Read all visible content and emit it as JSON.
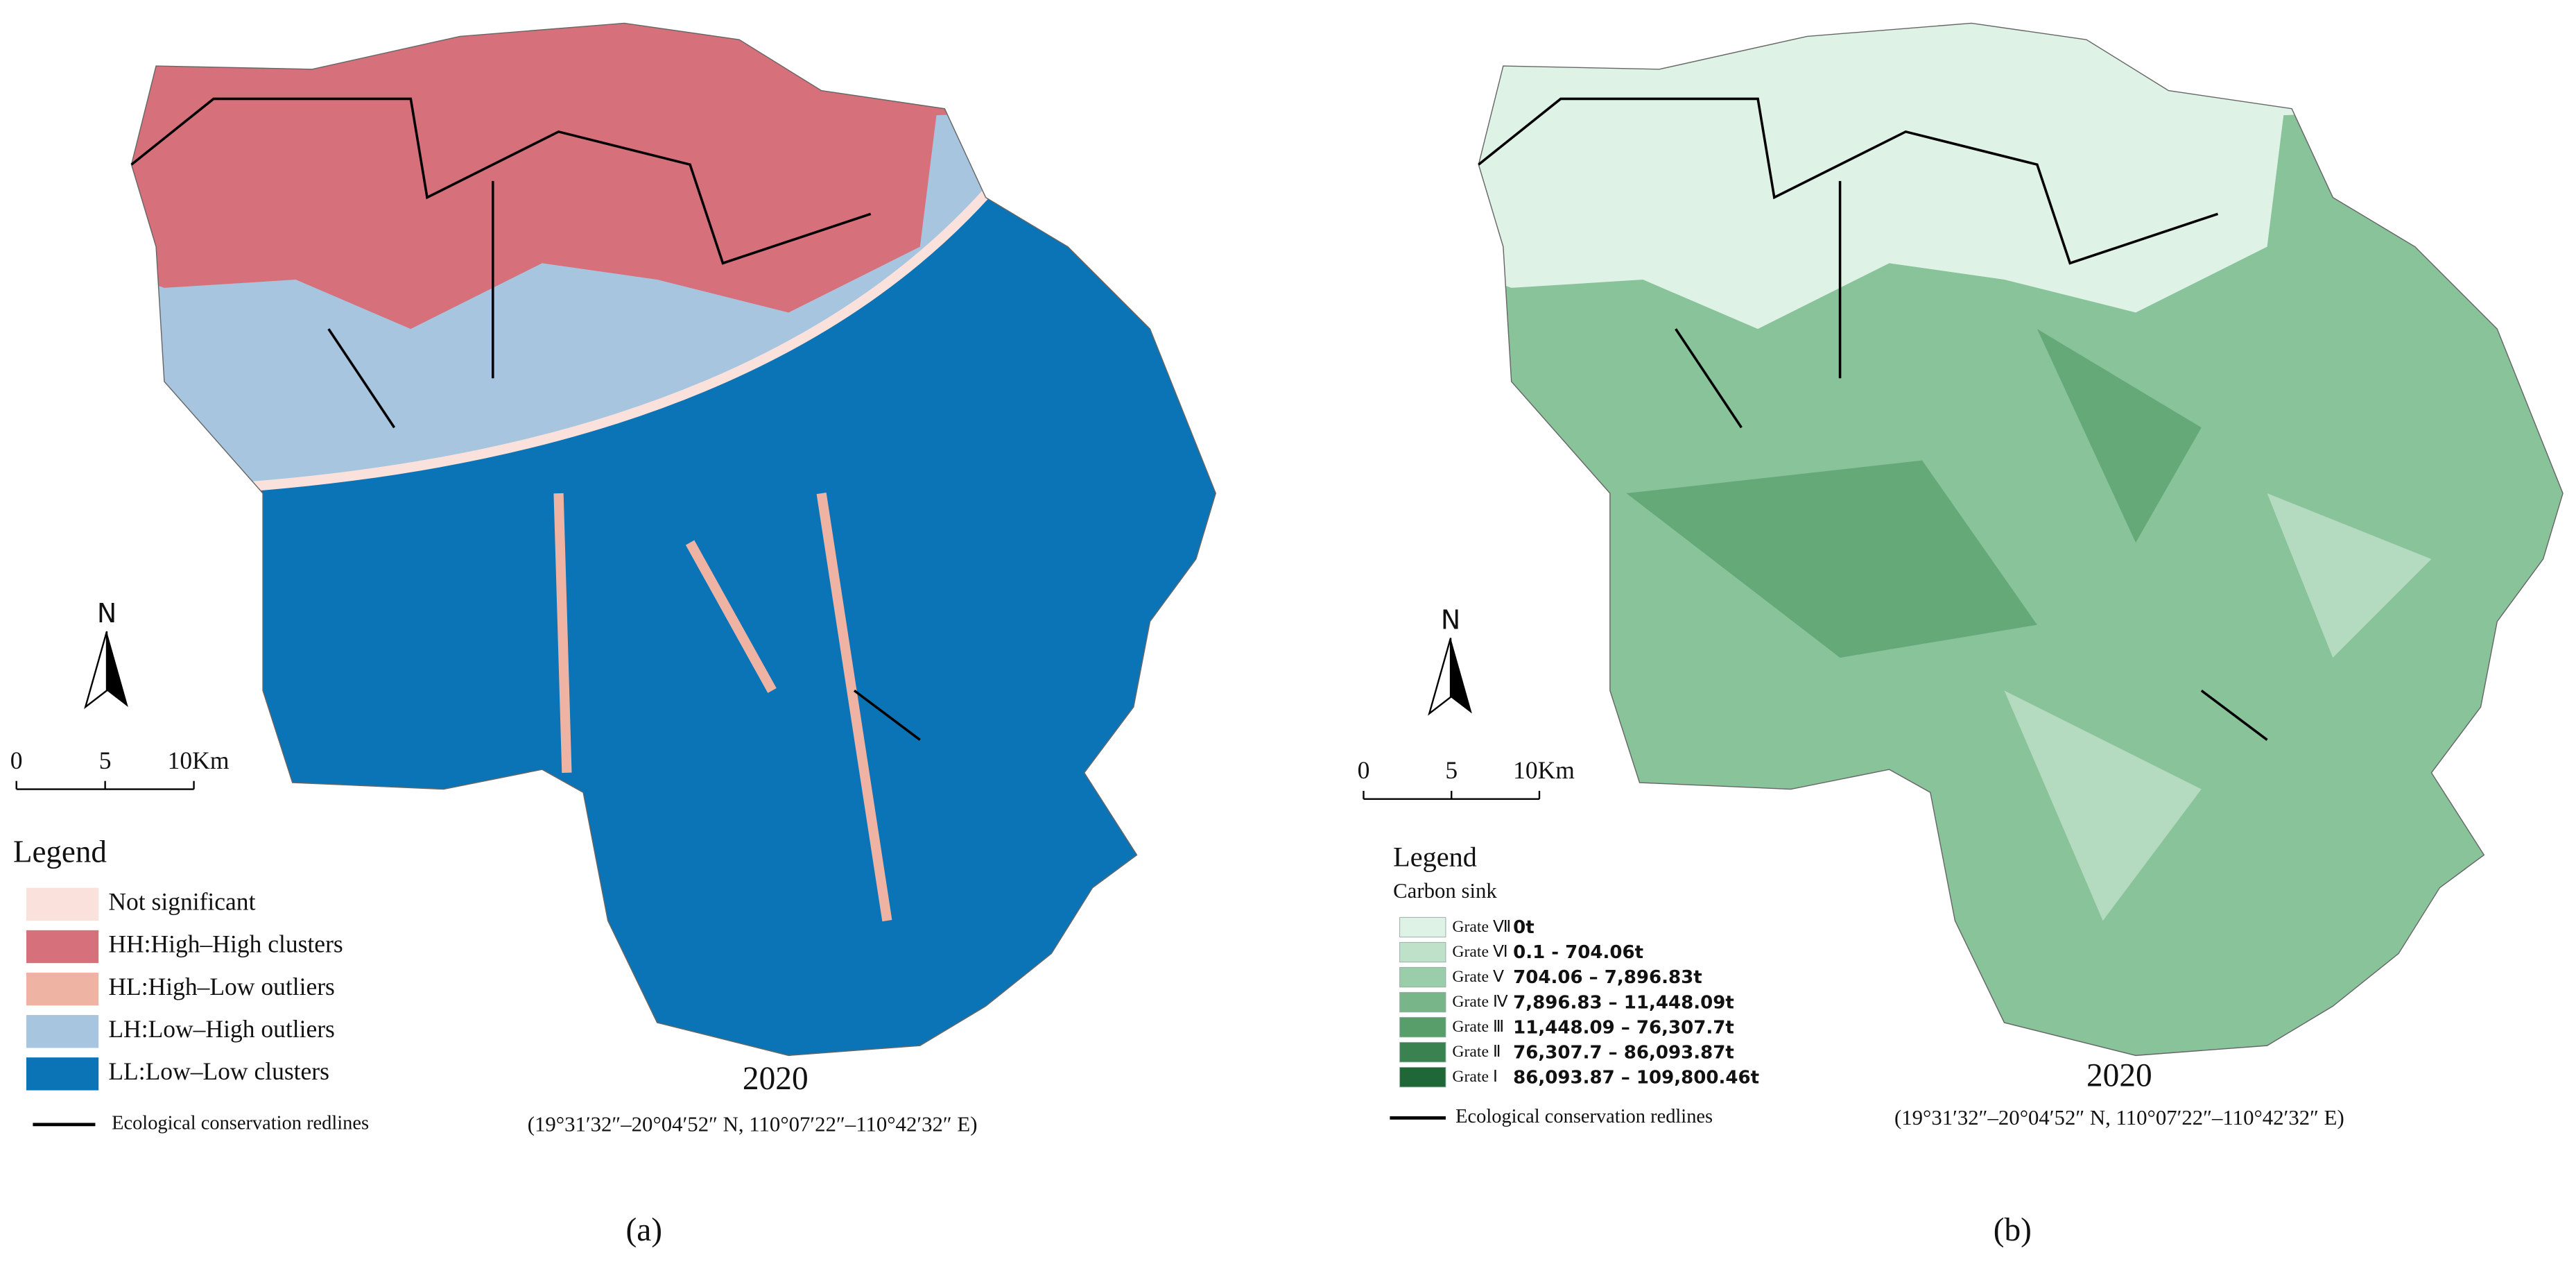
{
  "panels": [
    {
      "label": "(a)",
      "year": "2020",
      "coordinates": "(19°31′32″–20°04′52″ N, 110°07′22″–110°42′32″ E)",
      "north": "N",
      "scale": [
        "0",
        "5",
        "10Km"
      ],
      "legend": {
        "title": "Legend",
        "items": [
          {
            "label": "Not significant",
            "color": "#fbe1dc"
          },
          {
            "label": "HH:High–High clusters",
            "color": "#d6707a"
          },
          {
            "label": "HL:High–Low outliers",
            "color": "#efb3a3"
          },
          {
            "label": "LH:Low–High outliers",
            "color": "#a7c5df"
          },
          {
            "label": "LL:Low–Low clusters",
            "color": "#0b74b7"
          }
        ],
        "redline": "Ecological conservation redlines"
      }
    },
    {
      "label": "(b)",
      "year": "2020",
      "coordinates": "(19°31′32″–20°04′52″ N, 110°07′22″–110°42′32″ E)",
      "north": "N",
      "scale": [
        "0",
        "5",
        "10Km"
      ],
      "legend": {
        "title": "Legend",
        "subtitle": "Carbon sink",
        "items": [
          {
            "grade": "Grate Ⅶ",
            "range": "0t",
            "color": "#dff2e6"
          },
          {
            "grade": "Grate Ⅵ",
            "range": "0.1 - 704.06t",
            "color": "#bfe0c9"
          },
          {
            "grade": "Grate Ⅴ",
            "range": "704.06  – 7,896.83t",
            "color": "#9acda9"
          },
          {
            "grade": "Grate Ⅳ",
            "range": "7,896.83  – 11,448.09t",
            "color": "#78b68a"
          },
          {
            "grade": "Grate Ⅲ",
            "range": "11,448.09  – 76,307.7t",
            "color": "#579e6b"
          },
          {
            "grade": "Grate Ⅱ",
            "range": "76,307.7  – 86,093.87t",
            "color": "#3a8351"
          },
          {
            "grade": "Grate Ⅰ",
            "range": "86,093.87  – 109,800.46t",
            "color": "#1f6736"
          }
        ],
        "redline": "Ecological conservation redlines"
      }
    }
  ]
}
